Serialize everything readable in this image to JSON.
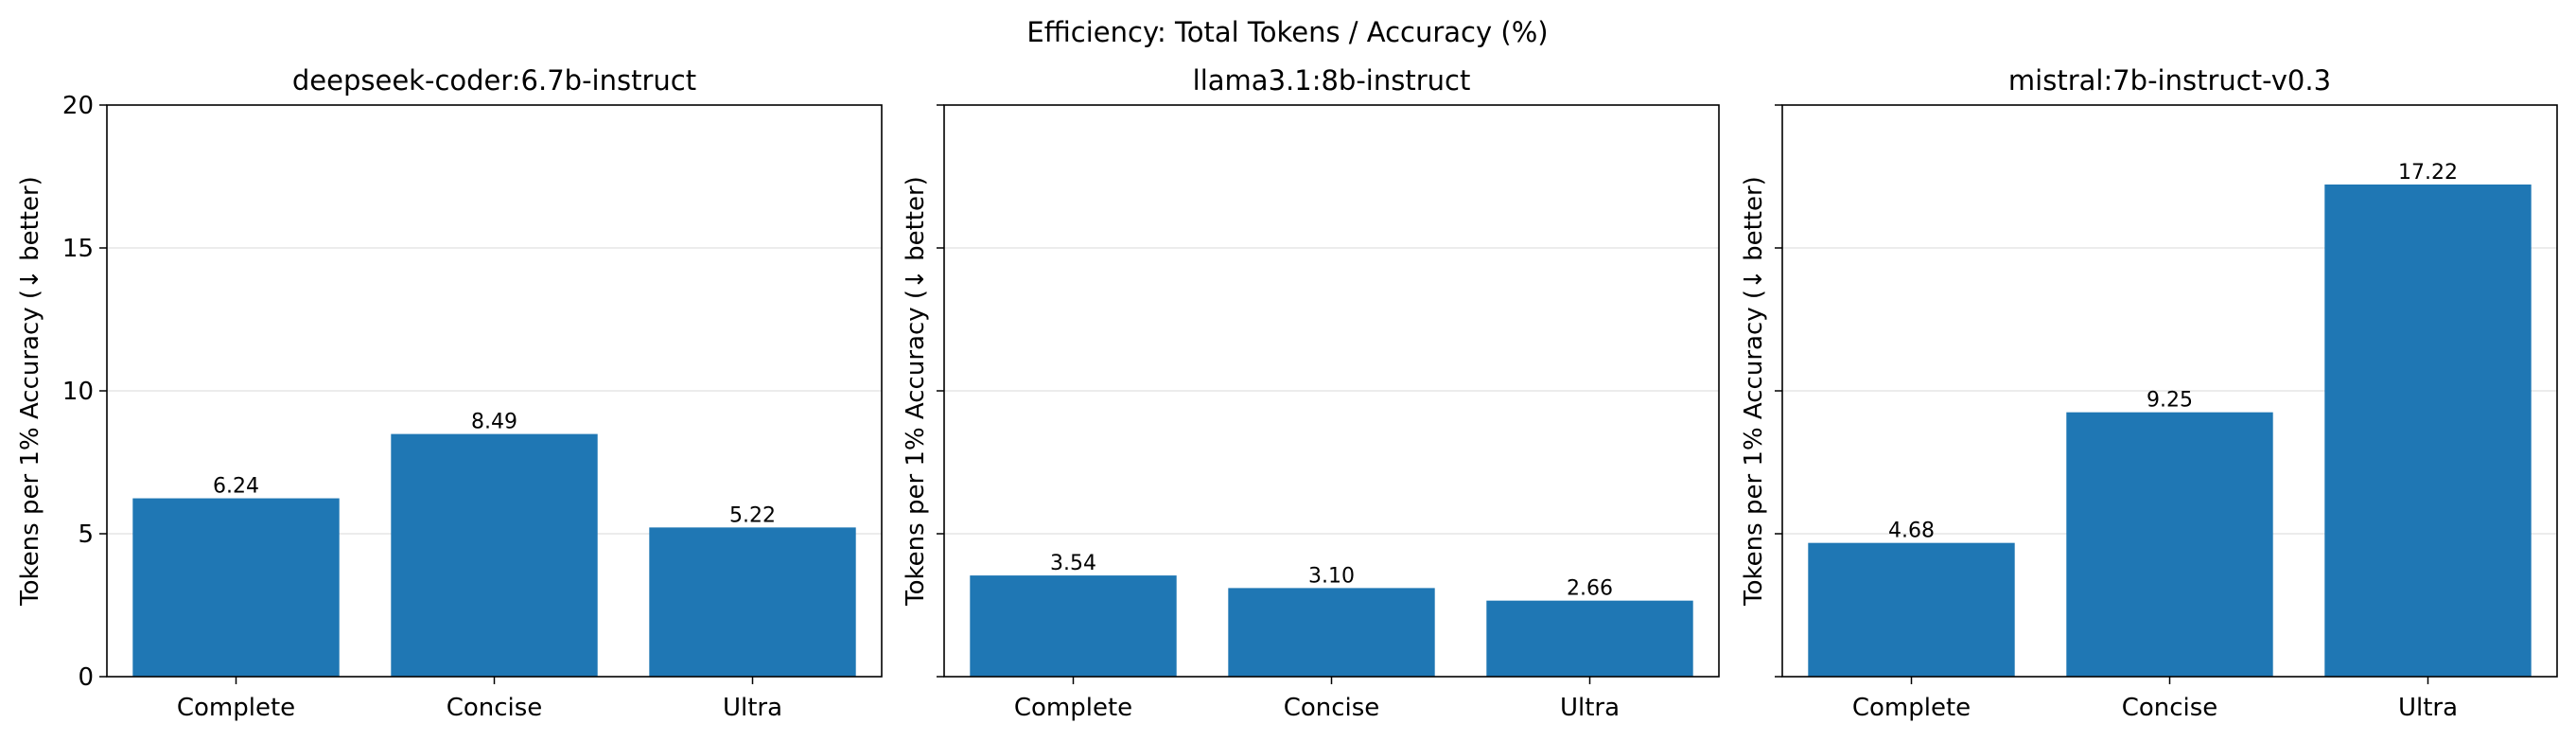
{
  "suptitle": "Efficiency: Total Tokens / Accuracy (%)",
  "colors": {
    "bar": "#1f77b4",
    "grid": "#e6e6e6",
    "axis": "#000000"
  },
  "chart_data": [
    {
      "type": "bar",
      "title": "deepseek-coder:6.7b-instruct",
      "categories": [
        "Complete",
        "Concise",
        "Ultra"
      ],
      "values": [
        6.24,
        8.49,
        5.22
      ],
      "value_labels": [
        "6.24",
        "8.49",
        "5.22"
      ],
      "ylabel": "Tokens per 1% Accuracy (↓ better)",
      "ylim": [
        0,
        20
      ],
      "yticks": [
        0,
        5,
        10,
        15,
        20
      ],
      "ytick_labels": [
        "0",
        "5",
        "10",
        "15",
        "20"
      ],
      "grid": "y"
    },
    {
      "type": "bar",
      "title": "llama3.1:8b-instruct",
      "categories": [
        "Complete",
        "Concise",
        "Ultra"
      ],
      "values": [
        3.54,
        3.1,
        2.66
      ],
      "value_labels": [
        "3.54",
        "3.10",
        "2.66"
      ],
      "ylabel": "Tokens per 1% Accuracy (↓ better)",
      "ylim": [
        0,
        20
      ],
      "yticks": [
        0,
        5,
        10,
        15,
        20
      ],
      "ytick_labels": [],
      "grid": "y"
    },
    {
      "type": "bar",
      "title": "mistral:7b-instruct-v0.3",
      "categories": [
        "Complete",
        "Concise",
        "Ultra"
      ],
      "values": [
        4.68,
        9.25,
        17.22
      ],
      "value_labels": [
        "4.68",
        "9.25",
        "17.22"
      ],
      "ylabel": "Tokens per 1% Accuracy (↓ better)",
      "ylim": [
        0,
        20
      ],
      "yticks": [
        0,
        5,
        10,
        15,
        20
      ],
      "ytick_labels": [],
      "grid": "y"
    }
  ]
}
